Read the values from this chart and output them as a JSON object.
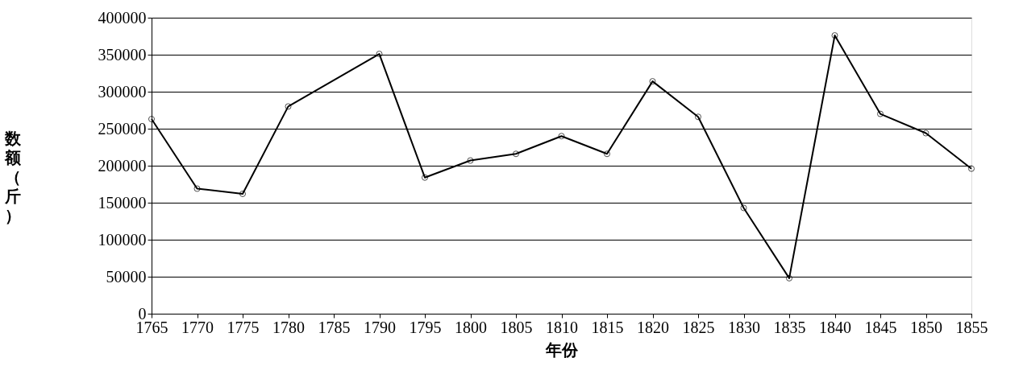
{
  "chart_data": {
    "type": "line",
    "xlabel": "年份",
    "ylabel": "数额（斤）",
    "x": [
      1765,
      1770,
      1775,
      1780,
      1790,
      1795,
      1800,
      1805,
      1810,
      1815,
      1820,
      1825,
      1830,
      1835,
      1840,
      1845,
      1850,
      1855
    ],
    "series": [
      {
        "color": "#000000",
        "values": [
          263000,
          169000,
          162000,
          280000,
          351000,
          184000,
          207000,
          216000,
          240000,
          216000,
          314000,
          266000,
          143000,
          48000,
          376000,
          270000,
          244000,
          196000
        ]
      }
    ],
    "xlim": [
      1765,
      1855
    ],
    "xticks": [
      1765,
      1770,
      1775,
      1780,
      1785,
      1790,
      1795,
      1800,
      1805,
      1810,
      1815,
      1820,
      1825,
      1830,
      1835,
      1840,
      1845,
      1850,
      1855
    ],
    "ylim": [
      0,
      400000
    ],
    "yticks": [
      0,
      50000,
      100000,
      150000,
      200000,
      250000,
      300000,
      350000,
      400000
    ],
    "grid": "y",
    "marker": "circle",
    "line_style": "solid"
  }
}
